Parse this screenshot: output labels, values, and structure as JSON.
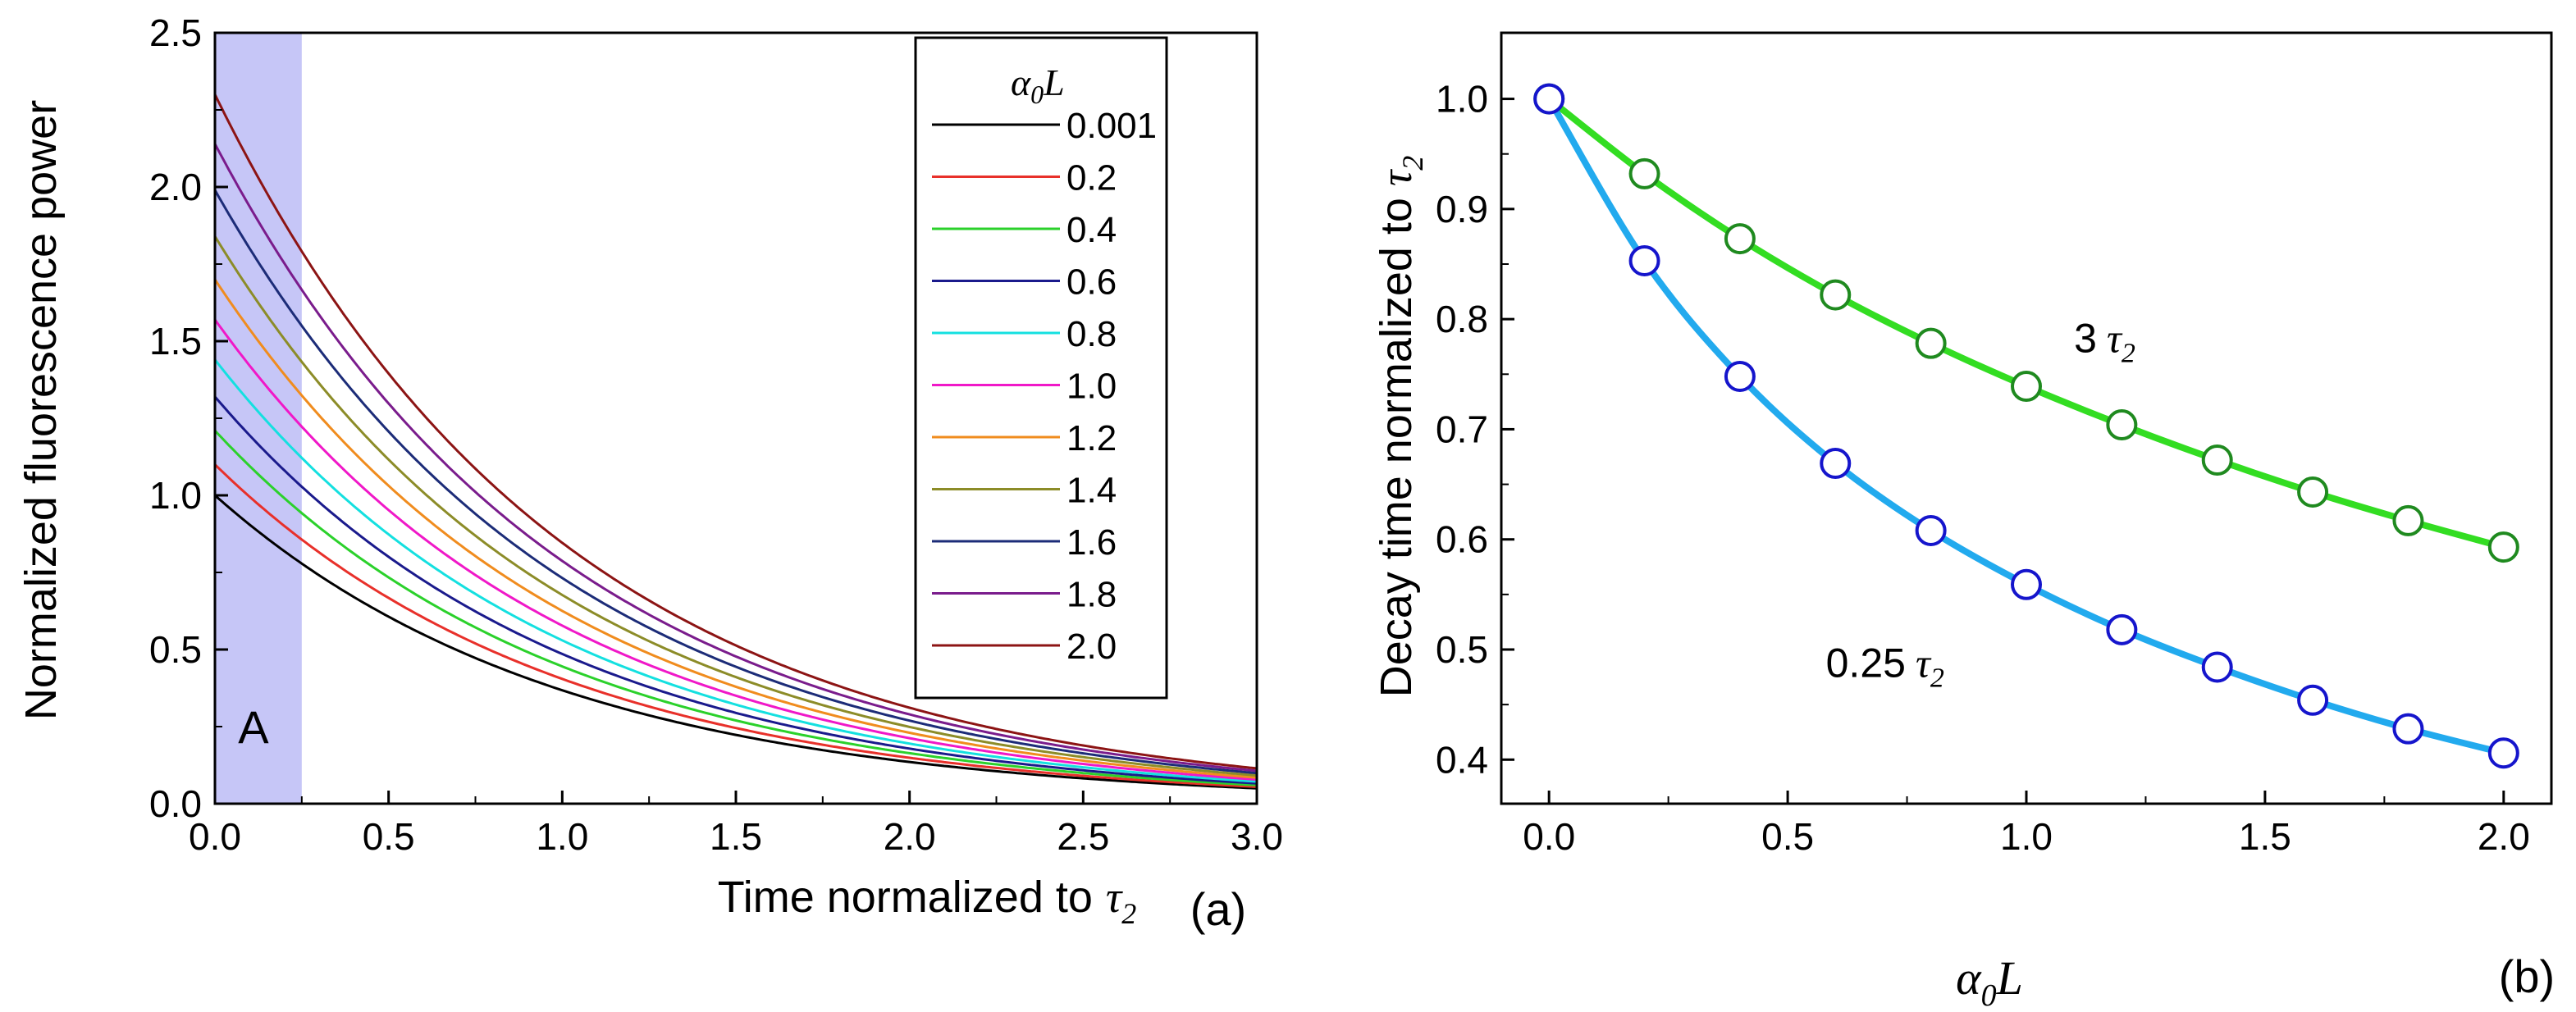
{
  "chart_data": [
    {
      "panel": "(a)",
      "type": "line",
      "xlabel": "Time normalized to",
      "xlabel_symbol": "τ",
      "xlabel_sub": "2",
      "ylabel": "Normalized fluorescence power",
      "xlim": [
        0,
        3.0
      ],
      "ylim": [
        0,
        2.5
      ],
      "xticks": [
        "0.0",
        "0.5",
        "1.0",
        "1.5",
        "2.0",
        "2.5",
        "3.0"
      ],
      "yticks": [
        "0.0",
        "0.5",
        "1.0",
        "1.5",
        "2.0",
        "2.5"
      ],
      "shaded_region": {
        "x": [
          0,
          0.25
        ],
        "label": "A",
        "color": "#c6c6f7"
      },
      "decay_model": "P(t) = P0 * exp(-t); P0 per series",
      "legend": {
        "title_symbol": "α",
        "title_sub": "0",
        "title_var": "L",
        "placement": "top-right"
      },
      "series": [
        {
          "name": "0.001",
          "color": "#000000",
          "p0": 1.0
        },
        {
          "name": "0.2",
          "color": "#e8302a",
          "p0": 1.1
        },
        {
          "name": "0.4",
          "color": "#2bd12b",
          "p0": 1.21
        },
        {
          "name": "0.6",
          "color": "#1a1a8c",
          "p0": 1.32
        },
        {
          "name": "0.8",
          "color": "#14e0e0",
          "p0": 1.44
        },
        {
          "name": "1.0",
          "color": "#f018c8",
          "p0": 1.57
        },
        {
          "name": "1.2",
          "color": "#f08c1e",
          "p0": 1.7
        },
        {
          "name": "1.4",
          "color": "#8c8c28",
          "p0": 1.84
        },
        {
          "name": "1.6",
          "color": "#1c2c78",
          "p0": 1.99
        },
        {
          "name": "1.8",
          "color": "#7a1c8c",
          "p0": 2.14
        },
        {
          "name": "2.0",
          "color": "#8c1414",
          "p0": 2.3
        }
      ]
    },
    {
      "panel": "(b)",
      "type": "line",
      "xlabel_symbol": "α",
      "xlabel_sub": "0",
      "xlabel_var": "L",
      "ylabel": "Decay time normalized to",
      "ylabel_symbol": "τ",
      "ylabel_sub": "2",
      "xlim": [
        -0.1,
        2.1
      ],
      "ylim": [
        0.36,
        1.06
      ],
      "xticks": [
        "0.0",
        "0.5",
        "1.0",
        "1.5",
        "2.0"
      ],
      "yticks": [
        "0.4",
        "0.5",
        "0.6",
        "0.7",
        "0.8",
        "0.9",
        "1.0"
      ],
      "x": [
        0,
        0.2,
        0.4,
        0.6,
        0.8,
        1.0,
        1.2,
        1.4,
        1.6,
        1.8,
        2.0
      ],
      "series": [
        {
          "name": "3τ2",
          "label_num": "3",
          "label_symbol": "τ",
          "label_sub": "2",
          "line_color": "#33dd22",
          "marker_color": "#1f8a1f",
          "values": [
            1.0,
            0.932,
            0.873,
            0.822,
            0.778,
            0.739,
            0.704,
            0.672,
            0.643,
            0.617,
            0.593
          ]
        },
        {
          "name": "0.25τ2",
          "label_num": "0.25",
          "label_symbol": "τ",
          "label_sub": "2",
          "line_color": "#22aaee",
          "marker_color": "#1515cc",
          "values": [
            1.0,
            0.853,
            0.748,
            0.669,
            0.608,
            0.559,
            0.518,
            0.484,
            0.454,
            0.428,
            0.406
          ]
        }
      ]
    }
  ]
}
